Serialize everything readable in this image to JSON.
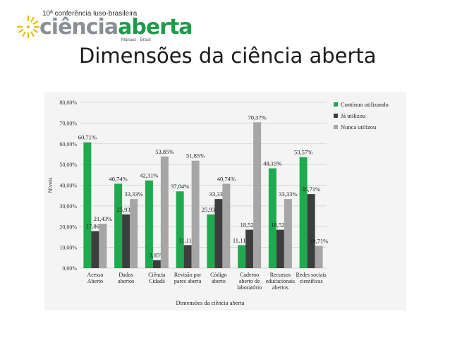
{
  "logo": {
    "top_text": "10ª conferência luso-brasileira",
    "word1": "ciência",
    "word2": "aberta",
    "sub": "Manaus · Brasil"
  },
  "slide": {
    "title": "Dimensões da ciência aberta"
  },
  "chart_data": {
    "type": "bar",
    "xlabel": "Dimensões da ciência aberta",
    "ylabel": "Níveis",
    "ylim": [
      0,
      80
    ],
    "yticks": [
      "0,00%",
      "10,00%",
      "20,00%",
      "30,00%",
      "40,00%",
      "50,00%",
      "60,00%",
      "70,00%",
      "80,00%"
    ],
    "grid": true,
    "legend_position": "top-right",
    "categories": [
      [
        "Acesso",
        "Aberto"
      ],
      [
        "Dados",
        "abertos"
      ],
      [
        "Ciência",
        "Cidadã"
      ],
      [
        "Revisão por",
        "pares aberta"
      ],
      [
        "Código",
        "aberto"
      ],
      [
        "Caderno",
        "aberto de",
        "laboratório"
      ],
      [
        "Recursos",
        "educacionais",
        "abertos"
      ],
      [
        "Redes sociais",
        "científicas"
      ]
    ],
    "series": [
      {
        "name": "Contínuo utilizando",
        "color": "#1eaa4f",
        "values": [
          60.71,
          40.74,
          42.31,
          37.04,
          25.93,
          11.11,
          48.15,
          53.57
        ],
        "labels": [
          "60,71%",
          "40,74%",
          "42,31%",
          "37,04%",
          "25,93%",
          "11,11%",
          "48,15%",
          "53,57%"
        ]
      },
      {
        "name": "Já utilizou",
        "color": "#3d3d3d",
        "values": [
          17.86,
          25.93,
          3.85,
          11.11,
          33.33,
          18.52,
          18.52,
          35.71
        ],
        "labels": [
          "17,86%",
          "25,93%",
          "3,85%",
          "11,11%",
          "33,33%",
          "18,52%",
          "18,52%",
          "35,71%"
        ]
      },
      {
        "name": "Nunca utilizou",
        "color": "#a6a6a6",
        "values": [
          21.43,
          33.33,
          53.85,
          51.85,
          40.74,
          70.37,
          33.33,
          10.71
        ],
        "labels": [
          "21,43%",
          "33,33%",
          "53,85%",
          "51,85%",
          "40,74%",
          "70,37%",
          "33,33%",
          "10,71%"
        ]
      }
    ]
  }
}
